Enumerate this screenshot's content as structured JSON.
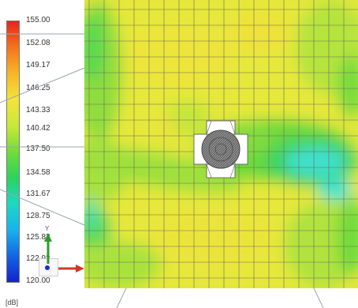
{
  "legend": {
    "unit_label": "[dB]",
    "ticks": [
      "155.00",
      "152.08",
      "149.17",
      "146.25",
      "143.33",
      "140.42",
      "137.50",
      "134.58",
      "131.67",
      "128.75",
      "125.83",
      "122.92",
      "120.00"
    ],
    "max": 155.0,
    "min": 120.0,
    "gradient_colors": [
      "#e8251d",
      "#f4741c",
      "#f6b629",
      "#f5e43a",
      "#c9e83a",
      "#72dd37",
      "#2bd35f",
      "#1ed8c3",
      "#18b3ee",
      "#1565e2",
      "#1222d0"
    ]
  },
  "axes_triad": {
    "y_label": "Y"
  },
  "colors": {
    "field_yellow": "#e6e83a",
    "field_light_green": "#b5e43c",
    "field_green": "#60d83a",
    "field_cyan": "#3fe0cf",
    "mesh_line": "#555555",
    "axis_y": "#2e9a2c",
    "axis_x": "#d0382a",
    "axis_dot": "#1a2ad8"
  }
}
